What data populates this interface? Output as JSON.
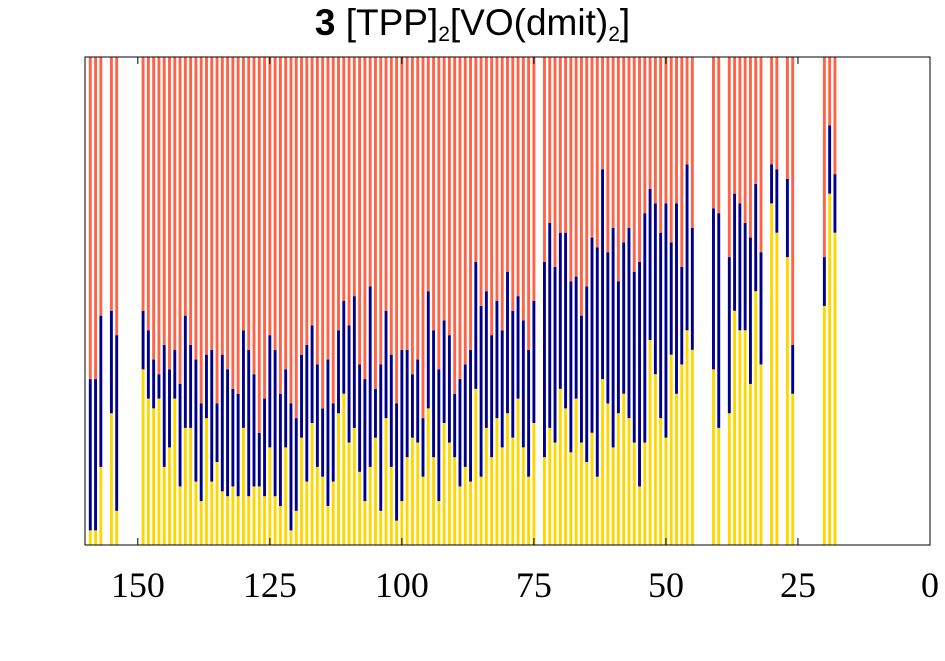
{
  "chart_data": {
    "type": "bar",
    "stacked": true,
    "normalized": true,
    "title": {
      "label": "3",
      "main": "[TPP]",
      "sub1": "2",
      "middle": "[VO(dmit)",
      "sub2": "2",
      "end": "]"
    },
    "xlabel": "",
    "ylabel": "",
    "xlim": [
      160,
      0
    ],
    "ylim": [
      0,
      1
    ],
    "x_ticks": [
      150,
      125,
      100,
      75,
      50,
      25,
      0
    ],
    "x_tick_labels": [
      "150",
      "125",
      "100",
      "75",
      "50",
      "25",
      "0"
    ],
    "bar_width": 0.55,
    "series": [
      {
        "name": "yellow",
        "color": "#FFD700"
      },
      {
        "name": "blue",
        "color": "#00008B"
      },
      {
        "name": "red",
        "color": "#FF6347"
      }
    ],
    "bars": [
      {
        "x": 159,
        "y": 0.03,
        "b": 0.34
      },
      {
        "x": 158,
        "y": 0.03,
        "b": 0.34
      },
      {
        "x": 157,
        "y": 0.16,
        "b": 0.47
      },
      {
        "x": 155,
        "y": 0.27,
        "b": 0.48
      },
      {
        "x": 154,
        "y": 0.07,
        "b": 0.43
      },
      {
        "x": 149,
        "y": 0.36,
        "b": 0.48
      },
      {
        "x": 148,
        "y": 0.3,
        "b": 0.44
      },
      {
        "x": 147,
        "y": 0.28,
        "b": 0.38
      },
      {
        "x": 146,
        "y": 0.3,
        "b": 0.35
      },
      {
        "x": 145,
        "y": 0.16,
        "b": 0.41
      },
      {
        "x": 144,
        "y": 0.2,
        "b": 0.36
      },
      {
        "x": 143,
        "y": 0.3,
        "b": 0.4
      },
      {
        "x": 142,
        "y": 0.12,
        "b": 0.33
      },
      {
        "x": 141,
        "y": 0.24,
        "b": 0.47
      },
      {
        "x": 140,
        "y": 0.24,
        "b": 0.41
      },
      {
        "x": 139,
        "y": 0.13,
        "b": 0.38
      },
      {
        "x": 138,
        "y": 0.09,
        "b": 0.29
      },
      {
        "x": 137,
        "y": 0.26,
        "b": 0.39
      },
      {
        "x": 136,
        "y": 0.13,
        "b": 0.4
      },
      {
        "x": 135,
        "y": 0.17,
        "b": 0.29
      },
      {
        "x": 134,
        "y": 0.11,
        "b": 0.39
      },
      {
        "x": 133,
        "y": 0.1,
        "b": 0.36
      },
      {
        "x": 132,
        "y": 0.12,
        "b": 0.32
      },
      {
        "x": 131,
        "y": 0.1,
        "b": 0.31
      },
      {
        "x": 130,
        "y": 0.24,
        "b": 0.44
      },
      {
        "x": 129,
        "y": 0.1,
        "b": 0.4
      },
      {
        "x": 128,
        "y": 0.12,
        "b": 0.35
      },
      {
        "x": 127,
        "y": 0.12,
        "b": 0.23
      },
      {
        "x": 126,
        "y": 0.1,
        "b": 0.3
      },
      {
        "x": 125,
        "y": 0.2,
        "b": 0.43
      },
      {
        "x": 124,
        "y": 0.1,
        "b": 0.4
      },
      {
        "x": 123,
        "y": 0.08,
        "b": 0.31
      },
      {
        "x": 122,
        "y": 0.2,
        "b": 0.36
      },
      {
        "x": 121,
        "y": 0.03,
        "b": 0.29
      },
      {
        "x": 120,
        "y": 0.07,
        "b": 0.26
      },
      {
        "x": 119,
        "y": 0.22,
        "b": 0.39
      },
      {
        "x": 118,
        "y": 0.13,
        "b": 0.41
      },
      {
        "x": 117,
        "y": 0.25,
        "b": 0.45
      },
      {
        "x": 116,
        "y": 0.16,
        "b": 0.37
      },
      {
        "x": 115,
        "y": 0.14,
        "b": 0.28
      },
      {
        "x": 114,
        "y": 0.08,
        "b": 0.38
      },
      {
        "x": 113,
        "y": 0.13,
        "b": 0.29
      },
      {
        "x": 112,
        "y": 0.27,
        "b": 0.44
      },
      {
        "x": 111,
        "y": 0.31,
        "b": 0.5
      },
      {
        "x": 110,
        "y": 0.21,
        "b": 0.45
      },
      {
        "x": 109,
        "y": 0.24,
        "b": 0.51
      },
      {
        "x": 108,
        "y": 0.15,
        "b": 0.37
      },
      {
        "x": 107,
        "y": 0.09,
        "b": 0.34
      },
      {
        "x": 106,
        "y": 0.16,
        "b": 0.53
      },
      {
        "x": 105,
        "y": 0.22,
        "b": 0.32
      },
      {
        "x": 104,
        "y": 0.07,
        "b": 0.37
      },
      {
        "x": 103,
        "y": 0.26,
        "b": 0.48
      },
      {
        "x": 102,
        "y": 0.16,
        "b": 0.39
      },
      {
        "x": 101,
        "y": 0.05,
        "b": 0.29
      },
      {
        "x": 100,
        "y": 0.09,
        "b": 0.4
      },
      {
        "x": 99,
        "y": 0.18,
        "b": 0.4
      },
      {
        "x": 98,
        "y": 0.22,
        "b": 0.35
      },
      {
        "x": 97,
        "y": 0.21,
        "b": 0.38
      },
      {
        "x": 96,
        "y": 0.14,
        "b": 0.26
      },
      {
        "x": 95,
        "y": 0.28,
        "b": 0.52
      },
      {
        "x": 94,
        "y": 0.18,
        "b": 0.44
      },
      {
        "x": 93,
        "y": 0.09,
        "b": 0.36
      },
      {
        "x": 92,
        "y": 0.25,
        "b": 0.46
      },
      {
        "x": 91,
        "y": 0.21,
        "b": 0.43
      },
      {
        "x": 90,
        "y": 0.18,
        "b": 0.31
      },
      {
        "x": 89,
        "y": 0.12,
        "b": 0.34
      },
      {
        "x": 88,
        "y": 0.16,
        "b": 0.37
      },
      {
        "x": 87,
        "y": 0.13,
        "b": 0.4
      },
      {
        "x": 86,
        "y": 0.32,
        "b": 0.58
      },
      {
        "x": 85,
        "y": 0.14,
        "b": 0.49
      },
      {
        "x": 84,
        "y": 0.24,
        "b": 0.52
      },
      {
        "x": 83,
        "y": 0.18,
        "b": 0.43
      },
      {
        "x": 82,
        "y": 0.26,
        "b": 0.5
      },
      {
        "x": 81,
        "y": 0.2,
        "b": 0.44
      },
      {
        "x": 80,
        "y": 0.27,
        "b": 0.56
      },
      {
        "x": 79,
        "y": 0.22,
        "b": 0.48
      },
      {
        "x": 78,
        "y": 0.3,
        "b": 0.51
      },
      {
        "x": 77,
        "y": 0.2,
        "b": 0.46
      },
      {
        "x": 76,
        "y": 0.14,
        "b": 0.4
      },
      {
        "x": 75,
        "y": 0.25,
        "b": 0.5
      },
      {
        "x": 73,
        "y": 0.18,
        "b": 0.58
      },
      {
        "x": 72,
        "y": 0.24,
        "b": 0.66
      },
      {
        "x": 71,
        "y": 0.21,
        "b": 0.57
      },
      {
        "x": 70,
        "y": 0.32,
        "b": 0.64
      },
      {
        "x": 69,
        "y": 0.28,
        "b": 0.64
      },
      {
        "x": 68,
        "y": 0.19,
        "b": 0.54
      },
      {
        "x": 67,
        "y": 0.3,
        "b": 0.55
      },
      {
        "x": 66,
        "y": 0.21,
        "b": 0.47
      },
      {
        "x": 65,
        "y": 0.17,
        "b": 0.53
      },
      {
        "x": 64,
        "y": 0.23,
        "b": 0.63
      },
      {
        "x": 63,
        "y": 0.14,
        "b": 0.61
      },
      {
        "x": 62,
        "y": 0.34,
        "b": 0.77
      },
      {
        "x": 61,
        "y": 0.29,
        "b": 0.6
      },
      {
        "x": 60,
        "y": 0.2,
        "b": 0.65
      },
      {
        "x": 59,
        "y": 0.27,
        "b": 0.54
      },
      {
        "x": 58,
        "y": 0.31,
        "b": 0.62
      },
      {
        "x": 57,
        "y": 0.26,
        "b": 0.65
      },
      {
        "x": 56,
        "y": 0.21,
        "b": 0.56
      },
      {
        "x": 55,
        "y": 0.12,
        "b": 0.58
      },
      {
        "x": 54,
        "y": 0.21,
        "b": 0.68
      },
      {
        "x": 53,
        "y": 0.42,
        "b": 0.73
      },
      {
        "x": 52,
        "y": 0.35,
        "b": 0.7
      },
      {
        "x": 51,
        "y": 0.26,
        "b": 0.64
      },
      {
        "x": 50,
        "y": 0.22,
        "b": 0.7
      },
      {
        "x": 49,
        "y": 0.39,
        "b": 0.62
      },
      {
        "x": 48,
        "y": 0.31,
        "b": 0.7
      },
      {
        "x": 47,
        "y": 0.37,
        "b": 0.57
      },
      {
        "x": 46,
        "y": 0.44,
        "b": 0.78
      },
      {
        "x": 45,
        "y": 0.4,
        "b": 0.65
      },
      {
        "x": 41,
        "y": 0.36,
        "b": 0.69
      },
      {
        "x": 40,
        "y": 0.24,
        "b": 0.68
      },
      {
        "x": 38,
        "y": 0.27,
        "b": 0.59
      },
      {
        "x": 37,
        "y": 0.48,
        "b": 0.72
      },
      {
        "x": 36,
        "y": 0.44,
        "b": 0.7
      },
      {
        "x": 35,
        "y": 0.44,
        "b": 0.66
      },
      {
        "x": 34,
        "y": 0.33,
        "b": 0.63
      },
      {
        "x": 33,
        "y": 0.52,
        "b": 0.74
      },
      {
        "x": 32,
        "y": 0.37,
        "b": 0.6
      },
      {
        "x": 30,
        "y": 0.7,
        "b": 0.78
      },
      {
        "x": 29,
        "y": 0.64,
        "b": 0.77
      },
      {
        "x": 27,
        "y": 0.59,
        "b": 0.75
      },
      {
        "x": 26,
        "y": 0.31,
        "b": 0.41
      },
      {
        "x": 20,
        "y": 0.49,
        "b": 0.59
      },
      {
        "x": 19,
        "y": 0.72,
        "b": 0.86
      },
      {
        "x": 18,
        "y": 0.64,
        "b": 0.76
      }
    ]
  }
}
